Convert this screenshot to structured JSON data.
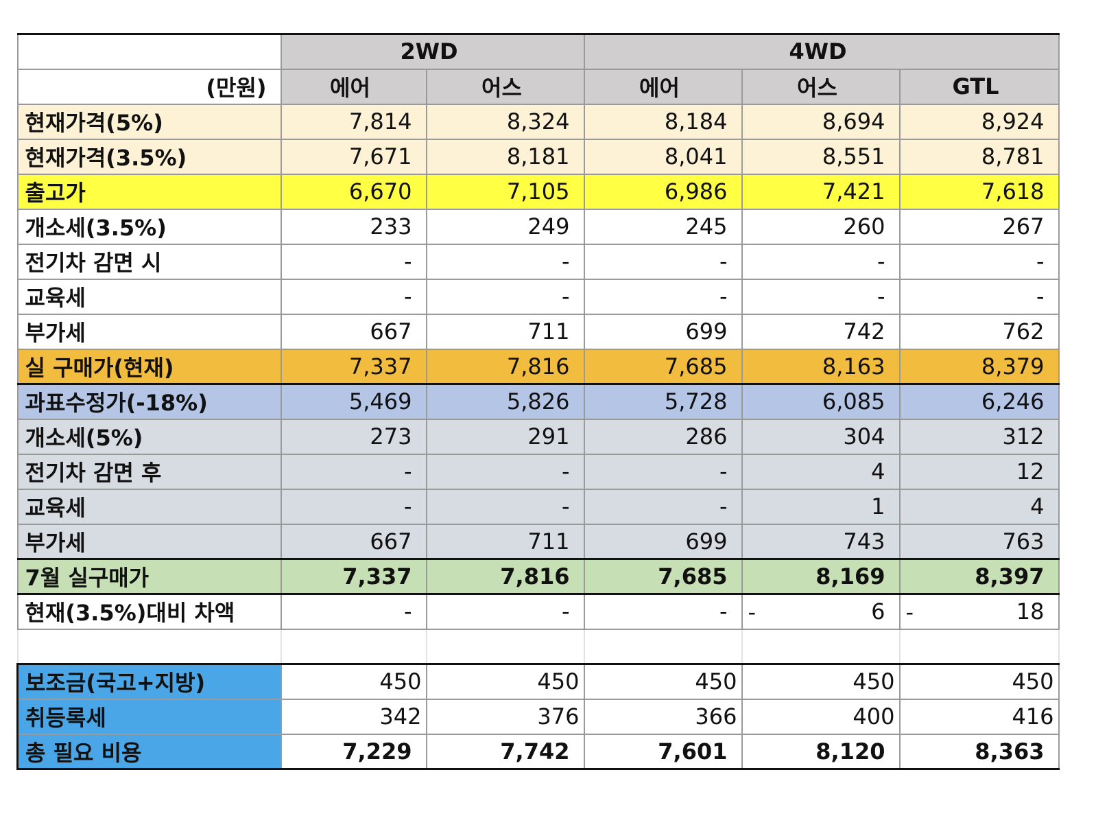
{
  "header": {
    "group_2wd": "2WD",
    "group_4wd": "4WD",
    "unit": "(만원)",
    "columns": [
      "에어",
      "어스",
      "에어",
      "어스",
      "GTL"
    ]
  },
  "rows": [
    {
      "label": "현재가격(5%)",
      "values": [
        "7,814",
        "8,324",
        "8,184",
        "8,694",
        "8,924"
      ]
    },
    {
      "label": "현재가격(3.5%)",
      "values": [
        "7,671",
        "8,181",
        "8,041",
        "8,551",
        "8,781"
      ]
    },
    {
      "label": "출고가",
      "values": [
        "6,670",
        "7,105",
        "6,986",
        "7,421",
        "7,618"
      ]
    },
    {
      "label": "개소세(3.5%)",
      "values": [
        "233",
        "249",
        "245",
        "260",
        "267"
      ]
    },
    {
      "label": "전기차 감면 시",
      "values": [
        "-",
        "-",
        "-",
        "-",
        "-"
      ]
    },
    {
      "label": "교육세",
      "values": [
        "-",
        "-",
        "-",
        "-",
        "-"
      ]
    },
    {
      "label": "부가세",
      "values": [
        "667",
        "711",
        "699",
        "742",
        "762"
      ]
    },
    {
      "label": "실 구매가(현재)",
      "values": [
        "7,337",
        "7,816",
        "7,685",
        "8,163",
        "8,379"
      ]
    },
    {
      "label": "과표수정가(-18%)",
      "values": [
        "5,469",
        "5,826",
        "5,728",
        "6,085",
        "6,246"
      ]
    },
    {
      "label": "개소세(5%)",
      "values": [
        "273",
        "291",
        "286",
        "304",
        "312"
      ]
    },
    {
      "label": "전기차 감면 후",
      "values": [
        "-",
        "-",
        "-",
        "4",
        "12"
      ]
    },
    {
      "label": "교육세",
      "values": [
        "-",
        "-",
        "-",
        "1",
        "4"
      ]
    },
    {
      "label": "부가세",
      "values": [
        "667",
        "711",
        "699",
        "743",
        "763"
      ]
    },
    {
      "label": "7월 실구매가",
      "values": [
        "7,337",
        "7,816",
        "7,685",
        "8,169",
        "8,397"
      ]
    },
    {
      "label": "현재(3.5%)대비 차액",
      "values": [
        "-",
        "-",
        "-",
        "6",
        "18"
      ],
      "prefix": [
        "",
        "",
        "",
        "-",
        "-"
      ]
    }
  ],
  "summary": [
    {
      "label": "보조금(국고+지방)",
      "values": [
        "450",
        "450",
        "450",
        "450",
        "450"
      ]
    },
    {
      "label": "취등록세",
      "values": [
        "342",
        "376",
        "366",
        "400",
        "416"
      ]
    },
    {
      "label": "총 필요 비용",
      "values": [
        "7,229",
        "7,742",
        "7,601",
        "8,120",
        "8,363"
      ]
    }
  ],
  "colors": {
    "header_gray": "#d0cece",
    "cream": "#fdf2d6",
    "yellow": "#ffff44",
    "orange": "#f2bd3e",
    "blue": "#b4c5e6",
    "gray": "#d7dbe2",
    "green": "#c6dfb4",
    "summary_blue": "#4aa6e6"
  }
}
